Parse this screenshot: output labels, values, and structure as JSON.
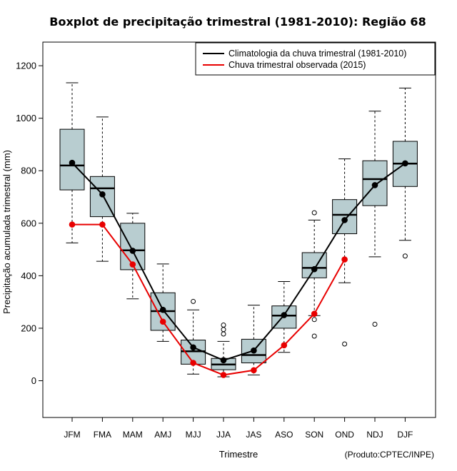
{
  "chart_data": {
    "type": "boxplot",
    "title": "Boxplot de precipitação trimestral (1981-2010): Região 68",
    "xlabel": "Trimestre",
    "ylabel": "Precipitação acumulada trimestral (mm)",
    "source": "(Produto:CPTEC/INPE)",
    "ylim": [
      -140,
      1290
    ],
    "yticks": [
      0,
      200,
      400,
      600,
      800,
      1000,
      1200
    ],
    "categories": [
      "JFM",
      "FMA",
      "MAM",
      "AMJ",
      "MJJ",
      "JJA",
      "JAS",
      "ASO",
      "SON",
      "OND",
      "NDJ",
      "DJF"
    ],
    "boxes": [
      {
        "whisker_low": 525,
        "q1": 727,
        "median": 820,
        "q3": 958,
        "whisker_high": 1135,
        "outliers": []
      },
      {
        "whisker_low": 455,
        "q1": 625,
        "median": 733,
        "q3": 778,
        "whisker_high": 1005,
        "outliers": []
      },
      {
        "whisker_low": 312,
        "q1": 423,
        "median": 497,
        "q3": 600,
        "whisker_high": 638,
        "outliers": []
      },
      {
        "whisker_low": 150,
        "q1": 192,
        "median": 265,
        "q3": 335,
        "whisker_high": 445,
        "outliers": []
      },
      {
        "whisker_low": 25,
        "q1": 63,
        "median": 112,
        "q3": 155,
        "whisker_high": 270,
        "outliers": [
          302
        ]
      },
      {
        "whisker_low": 15,
        "q1": 42,
        "median": 62,
        "q3": 85,
        "whisker_high": 150,
        "outliers": [
          178,
          195,
          212
        ]
      },
      {
        "whisker_low": 22,
        "q1": 68,
        "median": 98,
        "q3": 158,
        "whisker_high": 288,
        "outliers": []
      },
      {
        "whisker_low": 108,
        "q1": 200,
        "median": 248,
        "q3": 285,
        "whisker_high": 378,
        "outliers": []
      },
      {
        "whisker_low": 248,
        "q1": 392,
        "median": 430,
        "q3": 488,
        "whisker_high": 612,
        "outliers": [
          640,
          233,
          170
        ]
      },
      {
        "whisker_low": 373,
        "q1": 560,
        "median": 632,
        "q3": 690,
        "whisker_high": 845,
        "outliers": [
          140
        ]
      },
      {
        "whisker_low": 472,
        "q1": 667,
        "median": 768,
        "q3": 838,
        "whisker_high": 1027,
        "outliers": [
          215
        ]
      },
      {
        "whisker_low": 535,
        "q1": 740,
        "median": 827,
        "q3": 912,
        "whisker_high": 1115,
        "outliers": [
          475
        ]
      }
    ],
    "series": [
      {
        "name": "Climatologia da chuva trimestral (1981-2010)",
        "color": "#000000",
        "values": [
          830,
          710,
          495,
          270,
          127,
          78,
          115,
          250,
          425,
          612,
          745,
          828
        ]
      },
      {
        "name": "Chuva trimestral observada (2015)",
        "color": "#e80000",
        "values": [
          595,
          595,
          443,
          225,
          68,
          22,
          40,
          135,
          255,
          462,
          null,
          null
        ]
      }
    ],
    "legend_position": "top-right",
    "box_fill": "#b8cdd0"
  }
}
